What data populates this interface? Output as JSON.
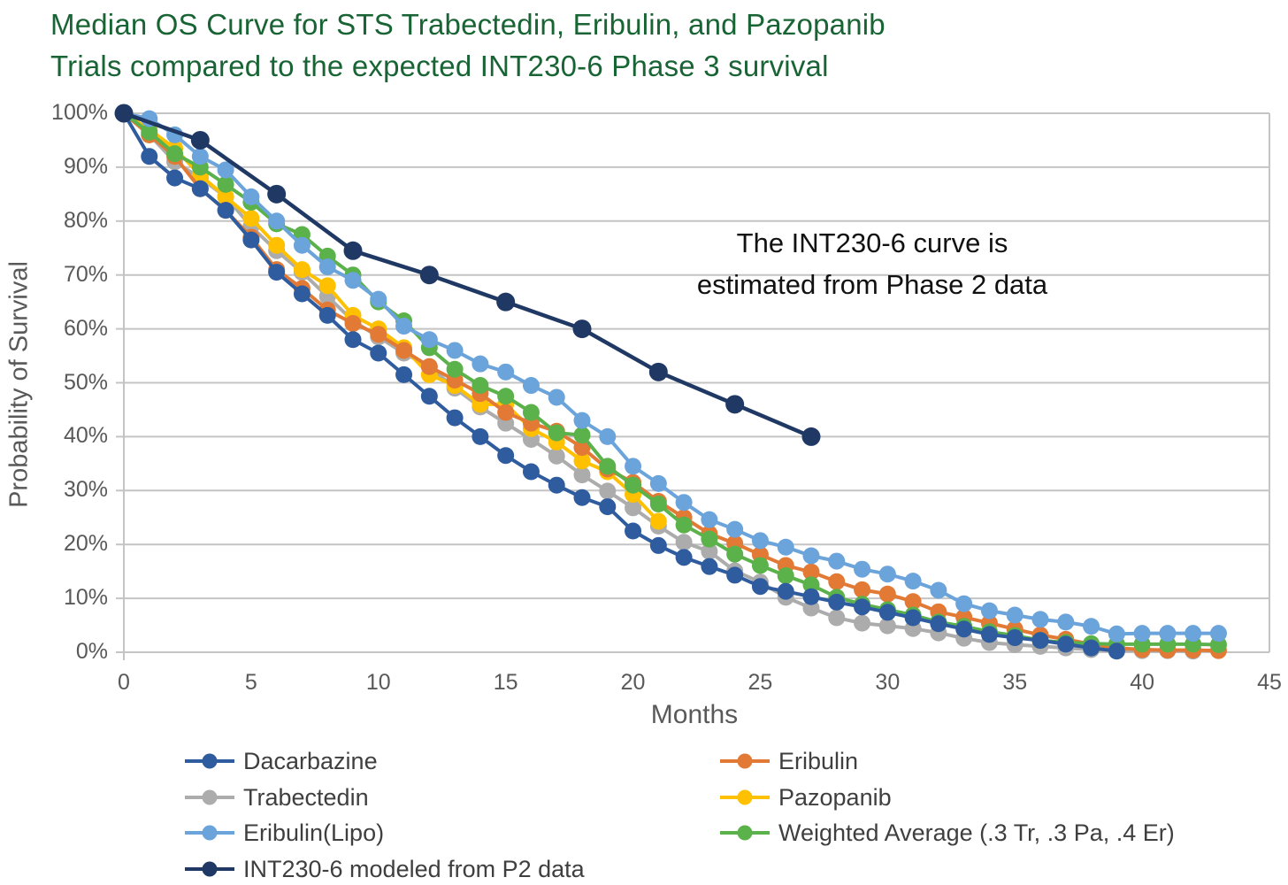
{
  "title": {
    "line1": "Median OS Curve for STS Trabectedin, Eribulin, and Pazopanib",
    "line2": "Trials compared to the expected INT230-6 Phase 3 survival",
    "color": "#196434"
  },
  "annotation": {
    "line1": "The INT230-6 curve is",
    "line2": "estimated from Phase 2 data"
  },
  "axes": {
    "y_label": "Probability of Survival",
    "x_label": "Months",
    "y_ticks": [
      "100%",
      "90%",
      "80%",
      "70%",
      "60%",
      "50%",
      "40%",
      "30%",
      "20%",
      "10%",
      "0%"
    ],
    "x_ticks": [
      "0",
      "5",
      "10",
      "15",
      "20",
      "25",
      "30",
      "35",
      "40",
      "45"
    ]
  },
  "colors": {
    "title_green": "#196434",
    "axis_text": "#595959",
    "legend_text": "#3F3F3F",
    "gridline": "#C4C4C4",
    "annotation_text": "#111111"
  },
  "legend": {
    "columns": [
      [
        "Dacarbazine",
        "Trabectedin",
        "Eribulin(Lipo)",
        "INT230-6 modeled from P2 data"
      ],
      [
        "Eribulin",
        "Pazopanib",
        "Weighted Average (.3 Tr, .3 Pa, .4 Er)"
      ]
    ]
  },
  "chart_data": {
    "type": "line",
    "title": "Median OS Curve for STS Trabectedin, Eribulin, and Pazopanib Trials compared to the expected INT230-6 Phase 3 survival",
    "xlabel": "Months",
    "ylabel": "Probability of Survival",
    "xlim": [
      0,
      45
    ],
    "ylim": [
      0,
      100
    ],
    "x_tick_step": 5,
    "y_tick_step": 10,
    "y_unit": "percent",
    "grid": "horizontal",
    "legend_position": "bottom",
    "annotation": "The INT230-6 curve is estimated from Phase 2 data",
    "series": [
      {
        "name": "Trabectedin",
        "color": "#ACACAC",
        "x": [
          0,
          1,
          2,
          3,
          4,
          5,
          6,
          7,
          8,
          9,
          10,
          11,
          12,
          13,
          14,
          15,
          16,
          17,
          18,
          19,
          20,
          21,
          22,
          23,
          24,
          25,
          26,
          27,
          28,
          29,
          30,
          31,
          32,
          33,
          34,
          35,
          36,
          37,
          38,
          39,
          40,
          41,
          42
        ],
        "y": [
          100,
          96,
          91,
          88,
          84.5,
          79,
          74.5,
          70.5,
          66,
          61.5,
          58.5,
          55.5,
          53,
          49,
          45.5,
          42.5,
          39.5,
          36.4,
          32.9,
          29.9,
          26.8,
          23.4,
          20.4,
          18.7,
          15.1,
          13,
          10.2,
          8.2,
          6.4,
          5.4,
          4.9,
          4.4,
          3.6,
          2.6,
          1.8,
          1.4,
          1.1,
          0.8,
          0.5,
          0.3,
          0.3,
          0.3,
          0.2
        ]
      },
      {
        "name": "Pazopanib",
        "color": "#FFC000",
        "x": [
          0,
          1,
          2,
          3,
          4,
          5,
          6,
          7,
          8,
          9,
          10,
          11,
          12,
          13,
          14,
          15,
          16,
          17,
          18,
          19,
          20,
          21
        ],
        "y": [
          100,
          97,
          93.5,
          88.5,
          84.5,
          80.5,
          75.5,
          71,
          68,
          62.5,
          60,
          56.5,
          51.5,
          49.5,
          46,
          46,
          41.5,
          39,
          35.5,
          33.5,
          29.3,
          24.3
        ]
      },
      {
        "name": "Eribulin",
        "color": "#E27A35",
        "x": [
          0,
          1,
          2,
          3,
          4,
          5,
          6,
          7,
          8,
          9,
          10,
          11,
          12,
          13,
          14,
          15,
          16,
          17,
          18,
          19,
          20,
          21,
          22,
          23,
          24,
          25,
          26,
          27,
          28,
          29,
          30,
          31,
          32,
          33,
          34,
          35,
          36,
          37,
          38,
          39,
          40,
          41,
          42,
          43
        ],
        "y": [
          100,
          96,
          92,
          86,
          82,
          77,
          71,
          67.5,
          63.5,
          61,
          59,
          56,
          53,
          50.5,
          48,
          44.5,
          42.5,
          41,
          38,
          34,
          31.5,
          28,
          25,
          22,
          20.2,
          18.1,
          16.1,
          14.9,
          13.1,
          11.6,
          10.8,
          9.4,
          7.5,
          6.5,
          5.4,
          4.3,
          3.2,
          2.4,
          1.5,
          0.8,
          0.5,
          0.4,
          0.4,
          0.3
        ]
      },
      {
        "name": "Weighted Average (.3 Tr, .3 Pa, .4 Er)",
        "color": "#5BB24A",
        "x": [
          0,
          1,
          2,
          3,
          4,
          5,
          6,
          7,
          8,
          9,
          10,
          11,
          12,
          13,
          14,
          15,
          16,
          17,
          18,
          19,
          20,
          21,
          22,
          23,
          24,
          25,
          26,
          27,
          28,
          29,
          30,
          31,
          32,
          33,
          34,
          35,
          36,
          37,
          38,
          39,
          40,
          41,
          42,
          43
        ],
        "y": [
          100,
          96.5,
          92.5,
          90,
          86.8,
          83.5,
          79.5,
          77.5,
          73.5,
          70,
          65,
          61.5,
          56.5,
          52.5,
          49.5,
          47.5,
          44.5,
          40.7,
          40.3,
          34.5,
          31,
          27.5,
          23.6,
          21,
          18.2,
          16.1,
          14.2,
          12.5,
          10.2,
          8.9,
          7.9,
          6.9,
          5.6,
          4.8,
          3.8,
          3.1,
          2.2,
          1.8,
          1.6,
          1.5,
          1.5,
          1.5,
          1.5,
          1.4
        ]
      },
      {
        "name": "Eribulin(Lipo)",
        "color": "#6BA3DB",
        "x": [
          0,
          1,
          2,
          3,
          4,
          5,
          6,
          7,
          8,
          9,
          10,
          11,
          12,
          13,
          14,
          15,
          16,
          17,
          18,
          19,
          20,
          21,
          22,
          23,
          24,
          25,
          26,
          27,
          28,
          29,
          30,
          31,
          32,
          33,
          34,
          35,
          36,
          37,
          38,
          39,
          40,
          41,
          42,
          43
        ],
        "y": [
          100,
          99,
          96,
          92,
          89.5,
          84.5,
          80,
          75.5,
          71.5,
          69,
          65.5,
          60.5,
          58,
          56,
          53.5,
          52,
          49.5,
          47.3,
          43,
          40,
          34.5,
          31.3,
          27.8,
          24.6,
          22.8,
          20.7,
          19.5,
          17.9,
          16.9,
          15.4,
          14.5,
          13.2,
          11.5,
          9,
          7.7,
          6.9,
          6.1,
          5.6,
          4.8,
          3.4,
          3.5,
          3.5,
          3.5,
          3.5
        ]
      },
      {
        "name": "Dacarbazine",
        "color": "#2E5C9E",
        "x": [
          0,
          1,
          2,
          3,
          4,
          5,
          6,
          7,
          8,
          9,
          10,
          11,
          12,
          13,
          14,
          15,
          16,
          17,
          18,
          19,
          20,
          21,
          22,
          23,
          24,
          25,
          26,
          27,
          28,
          29,
          30,
          31,
          32,
          33,
          34,
          35,
          36,
          37,
          38,
          39
        ],
        "y": [
          100,
          92,
          88,
          86,
          82,
          76.5,
          70.5,
          66.5,
          62.5,
          58,
          55.5,
          51.5,
          47.5,
          43.5,
          40,
          36.5,
          33.5,
          31,
          28.7,
          27,
          22.5,
          19.8,
          17.6,
          15.9,
          14.3,
          12.2,
          11.3,
          10.3,
          9.3,
          8.4,
          7.4,
          6.4,
          5.3,
          4.3,
          3.3,
          2.7,
          2.2,
          1.5,
          0.8,
          0.2
        ]
      },
      {
        "name": "INT230-6 modeled from P2 data",
        "color": "#1F3864",
        "x": [
          0,
          3,
          6,
          9,
          12,
          15,
          18,
          21,
          24,
          27
        ],
        "y": [
          100,
          95,
          85,
          74.5,
          70,
          65,
          60,
          52,
          46,
          40
        ]
      }
    ]
  }
}
